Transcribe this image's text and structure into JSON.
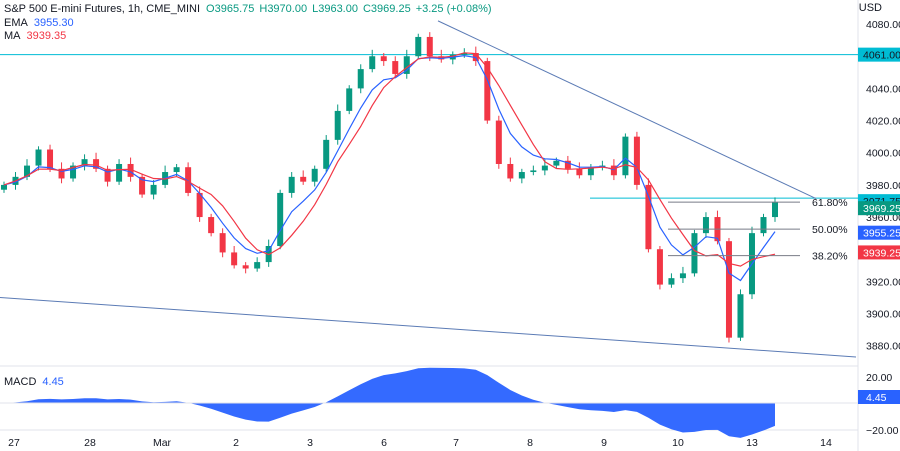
{
  "header": {
    "symbol": "S&P 500 E-mini Futures, 1h, CME_MINI",
    "open": "O3965.75",
    "high": "H3970.00",
    "low": "L3963.00",
    "close": "C3969.25",
    "change": "+3.25 (+0.08%)",
    "ema_label": "EMA",
    "ema_value": "3955.30",
    "ma_label": "MA",
    "ma_value": "3939.35",
    "currency": "USD"
  },
  "macd": {
    "label": "MACD",
    "value": "4.45"
  },
  "colors": {
    "up": "#089981",
    "down": "#f23645",
    "ema": "#2962ff",
    "ma": "#f23645",
    "macd": "#2962ff",
    "resistance": "#00bcd4",
    "trendline": "#5b7bb5",
    "fib": "#787b86"
  },
  "chart_data": {
    "type": "candlestick",
    "title": "S&P 500 E-mini Futures, 1h, CME_MINI",
    "price_range": [
      3868,
      4090
    ],
    "price_ticks": [
      "4080.00",
      "4060.00",
      "4040.00",
      "4020.00",
      "4000.00",
      "3980.00",
      "3960.00",
      "3940.00",
      "3920.00",
      "3900.00",
      "3880.00"
    ],
    "x_ticks": [
      "27",
      "28",
      "Mar",
      "2",
      "3",
      "6",
      "7",
      "8",
      "9",
      "10",
      "13",
      "14"
    ],
    "price_badges": [
      {
        "value": "4061.00",
        "color": "#00bcd4",
        "text_color": "#131722"
      },
      {
        "value": "3971.75",
        "color": "#00bcd4",
        "text_color": "#131722"
      },
      {
        "value": "3969.25",
        "color": "#089981",
        "text_color": "#ffffff"
      },
      {
        "value": "3955.25",
        "color": "#2962ff",
        "text_color": "#ffffff"
      },
      {
        "value": "3939.25",
        "color": "#f23645",
        "text_color": "#ffffff"
      }
    ],
    "fib_levels": [
      {
        "label": "61.80%",
        "price": 3969.25
      },
      {
        "label": "50.00%",
        "price": 3952.5
      },
      {
        "label": "38.20%",
        "price": 3936.0
      }
    ],
    "horizontal_levels": [
      4061.0,
      3971.75
    ],
    "close_path": [
      [
        "27",
        3980
      ],
      [
        "27",
        3985
      ],
      [
        "27",
        3992
      ],
      [
        "27",
        4002
      ],
      [
        "27",
        3990
      ],
      [
        "27",
        3984
      ],
      [
        "28",
        3992
      ],
      [
        "28",
        3996
      ],
      [
        "28",
        3990
      ],
      [
        "28",
        3982
      ],
      [
        "28",
        3993
      ],
      [
        "28",
        3985
      ],
      [
        "Mar",
        3974
      ],
      [
        "Mar",
        3980
      ],
      [
        "Mar",
        3988
      ],
      [
        "Mar",
        3991
      ],
      [
        "Mar",
        3975
      ],
      [
        "Mar",
        3960
      ],
      [
        "2",
        3950
      ],
      [
        "2",
        3938
      ],
      [
        "2",
        3930
      ],
      [
        "2",
        3928
      ],
      [
        "2",
        3932
      ],
      [
        "2",
        3942
      ],
      [
        "3",
        3975
      ],
      [
        "3",
        3985
      ],
      [
        "3",
        3982
      ],
      [
        "3",
        3990
      ],
      [
        "3",
        4008
      ],
      [
        "3",
        4026
      ],
      [
        "6",
        4040
      ],
      [
        "6",
        4052
      ],
      [
        "6",
        4060
      ],
      [
        "6",
        4057
      ],
      [
        "6",
        4049
      ],
      [
        "6",
        4060
      ],
      [
        "7",
        4072
      ],
      [
        "7",
        4060
      ],
      [
        "7",
        4058
      ],
      [
        "7",
        4061
      ],
      [
        "7",
        4062
      ],
      [
        "7",
        4057
      ],
      [
        "8",
        4020
      ],
      [
        "8",
        3993
      ],
      [
        "8",
        3984
      ],
      [
        "8",
        3988
      ],
      [
        "8",
        3989
      ],
      [
        "8",
        3992
      ],
      [
        "9",
        3995
      ],
      [
        "9",
        3990
      ],
      [
        "9",
        3986
      ],
      [
        "9",
        3991
      ],
      [
        "9",
        3992
      ],
      [
        "9",
        3986
      ],
      [
        "10",
        4010
      ],
      [
        "10",
        3980
      ],
      [
        "10",
        3940
      ],
      [
        "10",
        3918
      ],
      [
        "10",
        3922
      ],
      [
        "10",
        3925
      ],
      [
        "10",
        3950
      ],
      [
        "10",
        3960
      ],
      [
        "10",
        3945
      ],
      [
        "13",
        3885
      ],
      [
        "13",
        3912
      ],
      [
        "13",
        3950
      ],
      [
        "13",
        3960
      ],
      [
        "13",
        3969.25
      ]
    ],
    "ema_value": 3955.3,
    "ma_value": 3939.35,
    "macd_value": 4.45,
    "macd_ticks": [
      "20.00",
      "4.45",
      "−20.00"
    ]
  }
}
